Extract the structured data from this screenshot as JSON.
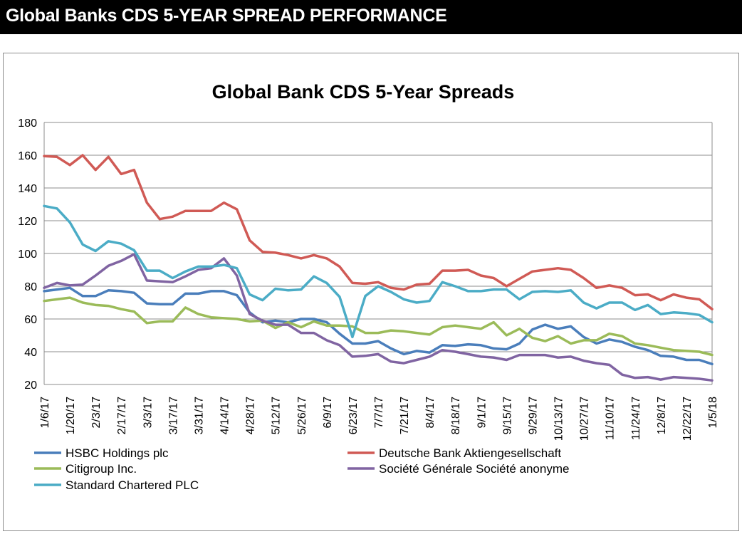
{
  "header": {
    "title": "Global Banks CDS 5-YEAR SPREAD PERFORMANCE"
  },
  "chart_data": {
    "type": "line",
    "title": "Global Bank CDS 5-Year Spreads",
    "xlabel": "",
    "ylabel": "",
    "ylim": [
      20,
      180
    ],
    "yticks": [
      20,
      40,
      60,
      80,
      100,
      120,
      140,
      160,
      180
    ],
    "grid": true,
    "legend_position": "bottom",
    "x": [
      "1/6/17",
      "1/13/17",
      "1/20/17",
      "1/27/17",
      "2/3/17",
      "2/10/17",
      "2/17/17",
      "2/24/17",
      "3/3/17",
      "3/10/17",
      "3/17/17",
      "3/24/17",
      "3/31/17",
      "4/7/17",
      "4/14/17",
      "4/21/17",
      "4/28/17",
      "5/5/17",
      "5/12/17",
      "5/19/17",
      "5/26/17",
      "6/2/17",
      "6/9/17",
      "6/16/17",
      "6/23/17",
      "6/30/17",
      "7/7/17",
      "7/14/17",
      "7/21/17",
      "7/28/17",
      "8/4/17",
      "8/11/17",
      "8/18/17",
      "8/25/17",
      "9/1/17",
      "9/8/17",
      "9/15/17",
      "9/22/17",
      "9/29/17",
      "10/6/17",
      "10/13/17",
      "10/20/17",
      "10/27/17",
      "11/3/17",
      "11/10/17",
      "11/17/17",
      "11/24/17",
      "12/1/17",
      "12/8/17",
      "12/15/17",
      "12/22/17",
      "12/29/17",
      "1/5/18"
    ],
    "x_tick_labels": [
      "1/6/17",
      "1/20/17",
      "2/3/17",
      "2/17/17",
      "3/3/17",
      "3/17/17",
      "3/31/17",
      "4/14/17",
      "4/28/17",
      "5/12/17",
      "5/26/17",
      "6/9/17",
      "6/23/17",
      "7/7/17",
      "7/21/17",
      "8/4/17",
      "8/18/17",
      "9/1/17",
      "9/15/17",
      "9/29/17",
      "10/13/17",
      "10/27/17",
      "11/10/17",
      "11/24/17",
      "12/8/17",
      "12/22/17",
      "1/5/18"
    ],
    "series": [
      {
        "name": "HSBC Holdings plc",
        "color": "#4a7ebb",
        "values": [
          77,
          78,
          79,
          74,
          74,
          77.5,
          77,
          76,
          69.5,
          69,
          69,
          75.5,
          75.5,
          77,
          77,
          74.5,
          64,
          58,
          59,
          58,
          60,
          60,
          58,
          51,
          45,
          45,
          46.5,
          42,
          38.5,
          40.5,
          39.5,
          44,
          43.5,
          44.5,
          44,
          42,
          41.5,
          45,
          53.5,
          56.5,
          54,
          55.5,
          49,
          45,
          47.5,
          46,
          43,
          41,
          37.5,
          37,
          35,
          35,
          32.5
        ]
      },
      {
        "name": "Deutsche Bank Aktiengesellschaft",
        "color": "#d05a55",
        "values": [
          159.5,
          159,
          154,
          160,
          151,
          159,
          148.5,
          151,
          131,
          121,
          122.5,
          126,
          126,
          126,
          131,
          127,
          108,
          101,
          100.5,
          99,
          97,
          99,
          97,
          92,
          82,
          81.5,
          82.5,
          79,
          78,
          81,
          81.5,
          89.5,
          89.5,
          90,
          86.5,
          85,
          80,
          84.5,
          89,
          90,
          91,
          90,
          85,
          79,
          80.5,
          79,
          74.5,
          75,
          71.5,
          75,
          73,
          72,
          66
        ]
      },
      {
        "name": "Citigroup Inc.",
        "color": "#9bbb59",
        "values": [
          71,
          72,
          73,
          70,
          68.5,
          68,
          66,
          64.5,
          57.5,
          58.5,
          58.5,
          67,
          63,
          61,
          60.5,
          60,
          58.5,
          59,
          54.5,
          58,
          55,
          58.5,
          56,
          56,
          55.5,
          51.5,
          51.5,
          53,
          52.5,
          51.5,
          50.5,
          55,
          56,
          55,
          54,
          58,
          50,
          54,
          48.5,
          46.5,
          49.5,
          45,
          47,
          47,
          51,
          49.5,
          45,
          44,
          42.5,
          41,
          40.5,
          40,
          38
        ]
      },
      {
        "name": "Société Générale Société anonyme",
        "color": "#8064a2",
        "values": [
          79,
          82,
          80.5,
          81,
          86.5,
          92.5,
          95.5,
          99.5,
          83.5,
          83,
          82.5,
          86,
          90,
          91,
          97,
          86.5,
          63,
          59,
          56.5,
          56.5,
          51.5,
          51.5,
          47,
          44,
          37,
          37.5,
          38.5,
          34,
          33,
          35,
          37,
          41,
          40,
          38.5,
          37,
          36.5,
          35,
          38,
          38,
          38,
          36.5,
          37,
          34.5,
          33,
          32,
          26,
          24,
          24.5,
          23,
          24.5,
          24,
          23.5,
          22.5
        ]
      },
      {
        "name": "Standard Chartered PLC",
        "color": "#4bacc6",
        "values": [
          129,
          127.5,
          119,
          105.5,
          101.5,
          107.5,
          106,
          102,
          89.5,
          89.5,
          85,
          89,
          92,
          92,
          93,
          91,
          75,
          71.5,
          78.5,
          77.5,
          78,
          86,
          82,
          73.5,
          49,
          74,
          80,
          76.5,
          72,
          70,
          71,
          82.5,
          80,
          77,
          77,
          78,
          78,
          72,
          76.5,
          77,
          76.5,
          77.5,
          70,
          66.5,
          70,
          70,
          65.5,
          68.5,
          63,
          64,
          63.5,
          62.5,
          58
        ]
      }
    ]
  }
}
